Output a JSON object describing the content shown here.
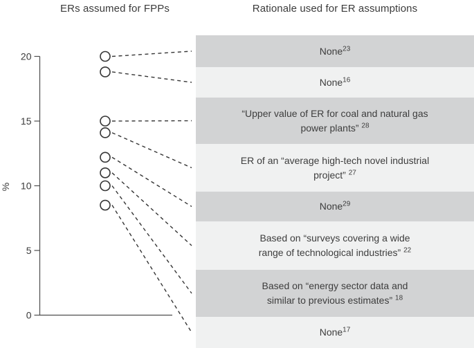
{
  "titles": {
    "left": "ERs assumed for FPPs",
    "right": "Rationale used for ER assumptions"
  },
  "chart_data": {
    "type": "scatter",
    "title": "ERs assumed for FPPs",
    "right_panel_title": "Rationale used for ER assumptions",
    "xlabel": "",
    "ylabel": "%",
    "ylim": [
      0,
      21
    ],
    "yticks": [
      0,
      5,
      10,
      15,
      20
    ],
    "grid": false,
    "marker": "open-circle",
    "points": [
      {
        "er_percent": 20.0,
        "rationale": "None",
        "ref": "23"
      },
      {
        "er_percent": 18.8,
        "rationale": "None",
        "ref": "16"
      },
      {
        "er_percent": 15.0,
        "rationale": "“Upper value of ER for coal and natural gas power plants” ",
        "ref": "28"
      },
      {
        "er_percent": 14.1,
        "rationale": "ER of an “average high-tech novel industrial project” ",
        "ref": "27"
      },
      {
        "er_percent": 12.2,
        "rationale": "None",
        "ref": "29"
      },
      {
        "er_percent": 11.0,
        "rationale": "Based on “surveys covering a wide range of technological industries” ",
        "ref": "22"
      },
      {
        "er_percent": 10.0,
        "rationale": "Based on “energy sector data and similar to previous estimates” ",
        "ref": "18"
      },
      {
        "er_percent": 8.5,
        "rationale": "None",
        "ref": "17"
      }
    ]
  },
  "colors": {
    "row_dark": "#d2d3d4",
    "row_light": "#f0f1f1",
    "ink": "#3b3b3b",
    "line": "#4d4d4d",
    "marker_stroke": "#343434"
  }
}
